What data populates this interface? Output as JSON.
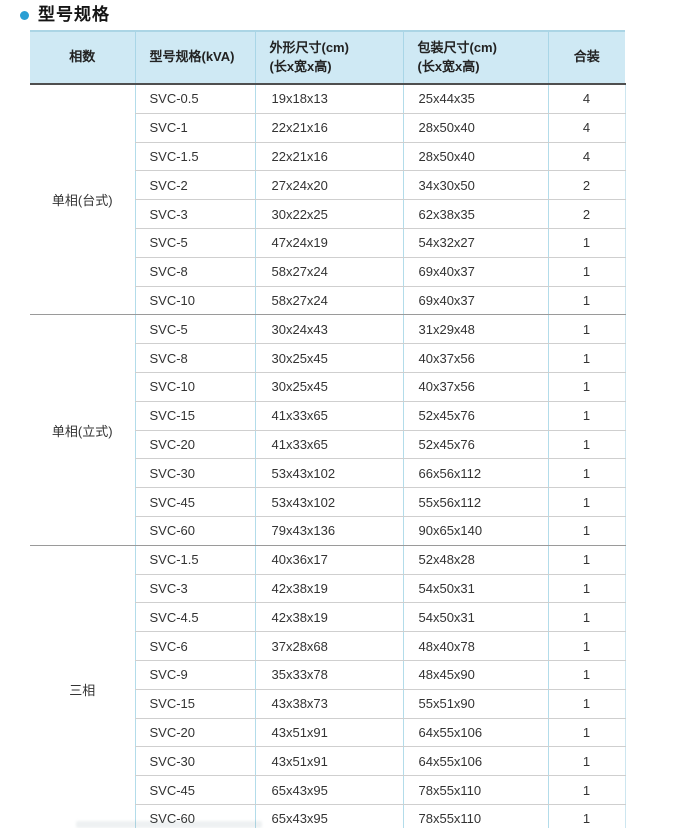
{
  "page": {
    "title": "型号规格",
    "accent_color": "#2b9fd4",
    "header_bg": "#cfe9f4"
  },
  "table": {
    "columns": [
      "相数",
      "型号规格(kVA)",
      "外形尺寸(cm)",
      "包装尺寸(cm)",
      "合装"
    ],
    "column_subtitles": [
      "",
      "",
      "(长x宽x高)",
      "(长x宽x高)",
      ""
    ],
    "groups": [
      {
        "phase": "单相(台式)",
        "rows": [
          [
            "SVC-0.5",
            "19x18x13",
            "25x44x35",
            "4"
          ],
          [
            "SVC-1",
            "22x21x16",
            "28x50x40",
            "4"
          ],
          [
            "SVC-1.5",
            "22x21x16",
            "28x50x40",
            "4"
          ],
          [
            "SVC-2",
            "27x24x20",
            "34x30x50",
            "2"
          ],
          [
            "SVC-3",
            "30x22x25",
            "62x38x35",
            "2"
          ],
          [
            "SVC-5",
            "47x24x19",
            "54x32x27",
            "1"
          ],
          [
            "SVC-8",
            "58x27x24",
            "69x40x37",
            "1"
          ],
          [
            "SVC-10",
            "58x27x24",
            "69x40x37",
            "1"
          ]
        ]
      },
      {
        "phase": "单相(立式)",
        "rows": [
          [
            "SVC-5",
            "30x24x43",
            "31x29x48",
            "1"
          ],
          [
            "SVC-8",
            "30x25x45",
            "40x37x56",
            "1"
          ],
          [
            "SVC-10",
            "30x25x45",
            "40x37x56",
            "1"
          ],
          [
            "SVC-15",
            "41x33x65",
            "52x45x76",
            "1"
          ],
          [
            "SVC-20",
            "41x33x65",
            "52x45x76",
            "1"
          ],
          [
            "SVC-30",
            "53x43x102",
            "66x56x112",
            "1"
          ],
          [
            "SVC-45",
            "53x43x102",
            "55x56x112",
            "1"
          ],
          [
            "SVC-60",
            "79x43x136",
            "90x65x140",
            "1"
          ]
        ]
      },
      {
        "phase": "三相",
        "rows": [
          [
            "SVC-1.5",
            "40x36x17",
            "52x48x28",
            "1"
          ],
          [
            "SVC-3",
            "42x38x19",
            "54x50x31",
            "1"
          ],
          [
            "SVC-4.5",
            "42x38x19",
            "54x50x31",
            "1"
          ],
          [
            "SVC-6",
            "37x28x68",
            "48x40x78",
            "1"
          ],
          [
            "SVC-9",
            "35x33x78",
            "48x45x90",
            "1"
          ],
          [
            "SVC-15",
            "43x38x73",
            "55x51x90",
            "1"
          ],
          [
            "SVC-20",
            "43x51x91",
            "64x55x106",
            "1"
          ],
          [
            "SVC-30",
            "43x51x91",
            "64x55x106",
            "1"
          ],
          [
            "SVC-45",
            "65x43x95",
            "78x55x110",
            "1"
          ],
          [
            "SVC-60",
            "65x43x95",
            "78x55x110",
            "1"
          ]
        ]
      }
    ]
  }
}
